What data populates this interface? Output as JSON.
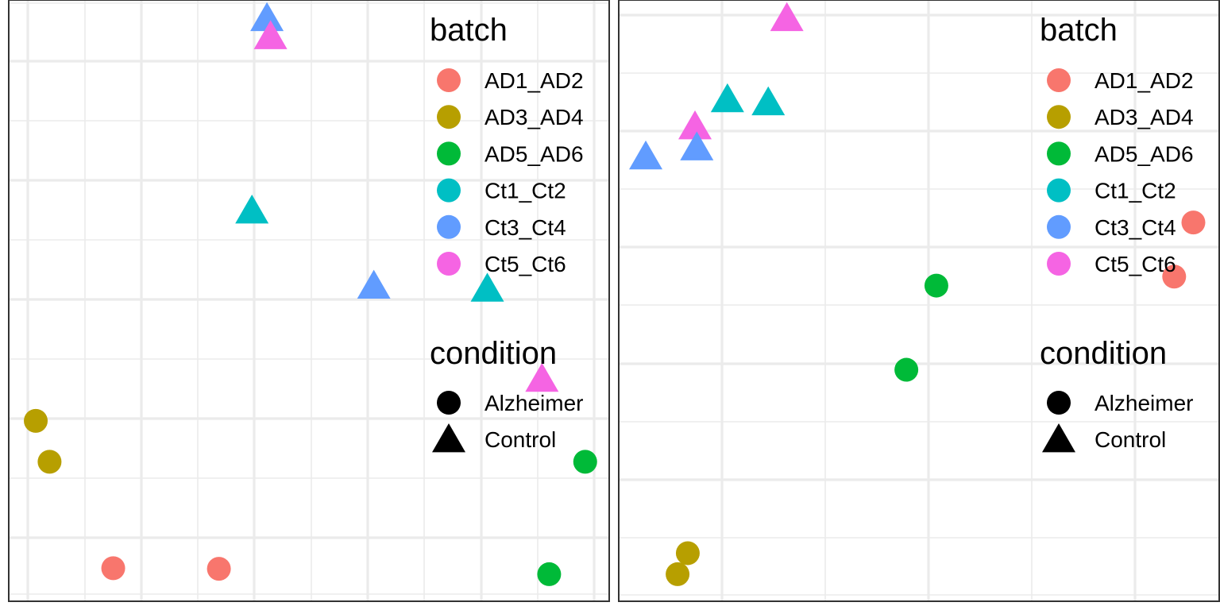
{
  "colors": {
    "AD1_AD2": "#F8766D",
    "AD3_AD4": "#B79F00",
    "AD5_AD6": "#00BA38",
    "Ct1_Ct2": "#00BFC4",
    "Ct3_Ct4": "#619CFF",
    "Ct5_Ct6": "#F564E3"
  },
  "legend": {
    "batch_title": "batch",
    "batch_items": [
      {
        "label": "AD1_AD2",
        "color": "#F8766D"
      },
      {
        "label": "AD3_AD4",
        "color": "#B79F00"
      },
      {
        "label": "AD5_AD6",
        "color": "#00BA38"
      },
      {
        "label": "Ct1_Ct2",
        "color": "#00BFC4"
      },
      {
        "label": "Ct3_Ct4",
        "color": "#619CFF"
      },
      {
        "label": "Ct5_Ct6",
        "color": "#F564E3"
      }
    ],
    "condition_title": "condition",
    "condition_items": [
      {
        "label": "Alzheimer",
        "shape": "circle"
      },
      {
        "label": "Control",
        "shape": "triangle"
      }
    ]
  },
  "chart_data": [
    {
      "type": "scatter",
      "title": "",
      "xlabel": "",
      "ylabel": "",
      "xlim": [
        0,
        1
      ],
      "ylim": [
        0,
        1
      ],
      "grid": true,
      "legend_position": "right",
      "points": [
        {
          "x": 0.43,
          "y": 0.97,
          "batch": "Ct3_Ct4",
          "condition": "Control"
        },
        {
          "x": 0.436,
          "y": 0.94,
          "batch": "Ct5_Ct6",
          "condition": "Control"
        },
        {
          "x": 0.405,
          "y": 0.65,
          "batch": "Ct1_Ct2",
          "condition": "Control"
        },
        {
          "x": 0.608,
          "y": 0.525,
          "batch": "Ct3_Ct4",
          "condition": "Control"
        },
        {
          "x": 0.797,
          "y": 0.52,
          "batch": "Ct1_Ct2",
          "condition": "Control"
        },
        {
          "x": 0.888,
          "y": 0.37,
          "batch": "Ct5_Ct6",
          "condition": "Control"
        },
        {
          "x": 0.045,
          "y": 0.3,
          "batch": "AD3_AD4",
          "condition": "Alzheimer"
        },
        {
          "x": 0.068,
          "y": 0.232,
          "batch": "AD3_AD4",
          "condition": "Alzheimer"
        },
        {
          "x": 0.96,
          "y": 0.232,
          "batch": "AD5_AD6",
          "condition": "Alzheimer"
        },
        {
          "x": 0.174,
          "y": 0.055,
          "batch": "AD1_AD2",
          "condition": "Alzheimer"
        },
        {
          "x": 0.35,
          "y": 0.054,
          "batch": "AD1_AD2",
          "condition": "Alzheimer"
        },
        {
          "x": 0.9,
          "y": 0.045,
          "batch": "AD5_AD6",
          "condition": "Alzheimer"
        }
      ]
    },
    {
      "type": "scatter",
      "title": "",
      "xlabel": "",
      "ylabel": "",
      "xlim": [
        0,
        1
      ],
      "ylim": [
        0,
        1
      ],
      "grid": true,
      "legend_position": "right",
      "points": [
        {
          "x": 0.28,
          "y": 0.97,
          "batch": "Ct5_Ct6",
          "condition": "Control"
        },
        {
          "x": 0.181,
          "y": 0.835,
          "batch": "Ct1_Ct2",
          "condition": "Control"
        },
        {
          "x": 0.249,
          "y": 0.83,
          "batch": "Ct1_Ct2",
          "condition": "Control"
        },
        {
          "x": 0.127,
          "y": 0.79,
          "batch": "Ct5_Ct6",
          "condition": "Control"
        },
        {
          "x": 0.13,
          "y": 0.755,
          "batch": "Ct3_Ct4",
          "condition": "Control"
        },
        {
          "x": 0.045,
          "y": 0.74,
          "batch": "Ct3_Ct4",
          "condition": "Control"
        },
        {
          "x": 0.957,
          "y": 0.63,
          "batch": "AD1_AD2",
          "condition": "Alzheimer"
        },
        {
          "x": 0.925,
          "y": 0.54,
          "batch": "AD1_AD2",
          "condition": "Alzheimer"
        },
        {
          "x": 0.529,
          "y": 0.525,
          "batch": "AD5_AD6",
          "condition": "Alzheimer"
        },
        {
          "x": 0.479,
          "y": 0.385,
          "batch": "AD5_AD6",
          "condition": "Alzheimer"
        },
        {
          "x": 0.115,
          "y": 0.08,
          "batch": "AD3_AD4",
          "condition": "Alzheimer"
        },
        {
          "x": 0.098,
          "y": 0.045,
          "batch": "AD3_AD4",
          "condition": "Alzheimer"
        }
      ]
    }
  ]
}
